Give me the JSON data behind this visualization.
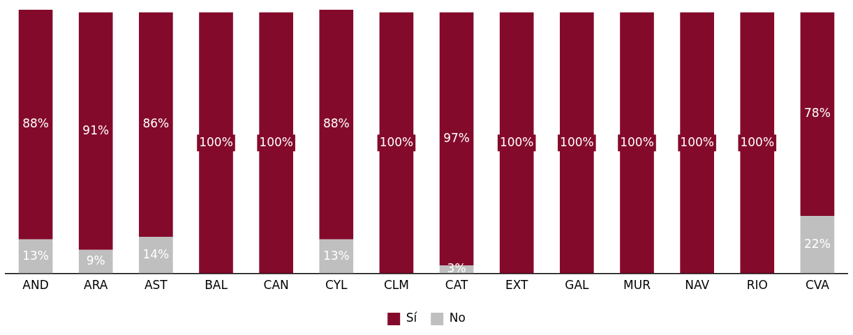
{
  "chart_data": {
    "type": "bar",
    "stacked": true,
    "data_labels": true,
    "legend": "bottom",
    "grid": false,
    "categories": [
      "AND",
      "ARA",
      "AST",
      "BAL",
      "CAN",
      "CYL",
      "CLM",
      "CAT",
      "EXT",
      "GAL",
      "MUR",
      "NAV",
      "RIO",
      "CVA"
    ],
    "series": [
      {
        "name": "No",
        "color": "#bfbfbf",
        "values": [
          13,
          9,
          14,
          0,
          0,
          13,
          0,
          3,
          0,
          0,
          0,
          0,
          0,
          22
        ],
        "value_labels": [
          "13%",
          "9%",
          "14%",
          null,
          null,
          "13%",
          null,
          "3%",
          null,
          null,
          null,
          null,
          null,
          "22%"
        ]
      },
      {
        "name": "Sí",
        "color": "#840a2b",
        "values": [
          88,
          91,
          86,
          100,
          100,
          88,
          100,
          97,
          100,
          100,
          100,
          100,
          100,
          78
        ],
        "value_labels": [
          "88%",
          "91%",
          "86%",
          "100%",
          "100%",
          "88%",
          "100%",
          "97%",
          "100%",
          "100%",
          "100%",
          "100%",
          "100%",
          "78%"
        ]
      }
    ]
  }
}
